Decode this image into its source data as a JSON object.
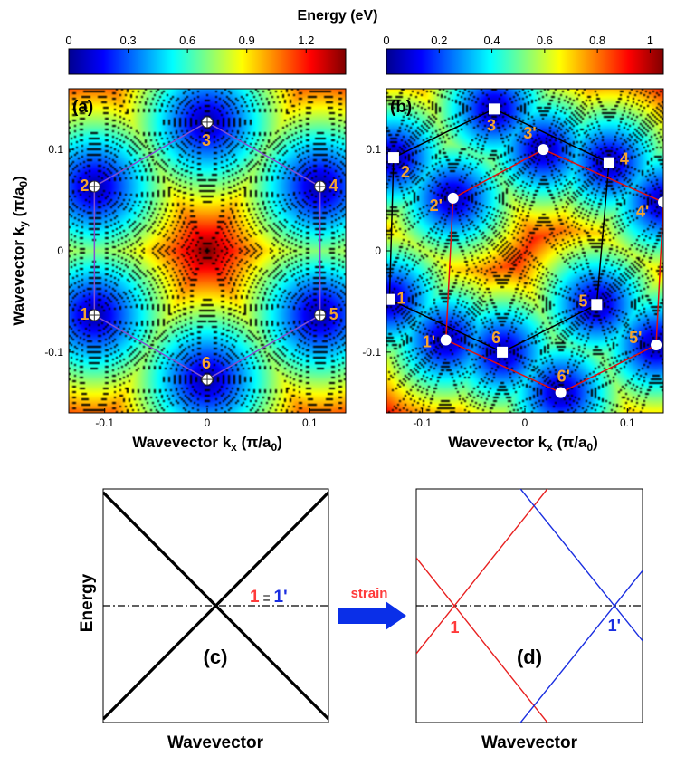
{
  "colorbar_title": "Energy (eV)",
  "colors": {
    "orange_label": "#f4a430",
    "hex_purple": "#8050d0",
    "hex_black": "#000000",
    "hex_red": "#e01010",
    "line_red": "#e82020",
    "line_blue": "#1a2ee0",
    "arrow_blue": "#0a2fe8",
    "strain_red": "#ff3a3a"
  },
  "colormap": [
    "#00008f",
    "#0000ff",
    "#0080ff",
    "#00ffff",
    "#80ff80",
    "#ffff00",
    "#ff8000",
    "#ff0000",
    "#800000"
  ],
  "arrow": {
    "label": "strain"
  },
  "chart_data": [
    {
      "id": "a",
      "type": "heatmap",
      "panel_label": "(a)",
      "xlabel": "Wavevector k",
      "xlabel_sub": "x",
      "xlabel_unit": " (π/a",
      "xlabel_unit_sub": "0",
      "xlabel_unit_end": ")",
      "ylabel": "Wavevector k",
      "ylabel_sub": "y",
      "ylabel_unit": " (π/a",
      "ylabel_unit_sub": "0",
      "ylabel_unit_end": ")",
      "xlim": [
        -0.135,
        0.135
      ],
      "ylim": [
        -0.16,
        0.16
      ],
      "xticks": [
        -0.1,
        0,
        0.1
      ],
      "xtick_labels": [
        "-0.1",
        "0",
        "0.1"
      ],
      "yticks": [
        -0.1,
        0,
        0.1
      ],
      "ytick_labels": [
        "-0.1",
        "0",
        "0.1"
      ],
      "colorbar": {
        "range": [
          0,
          1.4
        ],
        "ticks": [
          0,
          0.3,
          0.6,
          0.9,
          1.2
        ],
        "tick_labels": [
          "0",
          "0.3",
          "0.6",
          "0.9",
          "1.2"
        ]
      },
      "points": [
        {
          "label": "1",
          "x": -0.11,
          "y": -0.0635
        },
        {
          "label": "2",
          "x": -0.11,
          "y": 0.0635
        },
        {
          "label": "3",
          "x": 0.0,
          "y": 0.127
        },
        {
          "label": "4",
          "x": 0.11,
          "y": 0.0635
        },
        {
          "label": "5",
          "x": 0.11,
          "y": -0.0635
        },
        {
          "label": "6",
          "x": 0.0,
          "y": -0.127
        }
      ]
    },
    {
      "id": "b",
      "type": "heatmap",
      "panel_label": "(b)",
      "xlabel": "Wavevector k",
      "xlabel_sub": "x",
      "xlabel_unit": " (π/a",
      "xlabel_unit_sub": "0",
      "xlabel_unit_end": ")",
      "xlim": [
        -0.135,
        0.135
      ],
      "ylim": [
        -0.16,
        0.16
      ],
      "xticks": [
        -0.1,
        0,
        0.1
      ],
      "xtick_labels": [
        "-0.1",
        "0",
        "0.1"
      ],
      "yticks": [
        -0.1,
        0,
        0.1
      ],
      "ytick_labels": [
        "-0.1",
        "0",
        "0.1"
      ],
      "colorbar": {
        "range": [
          0,
          1.05
        ],
        "ticks": [
          0,
          0.2,
          0.4,
          0.6,
          0.8,
          1
        ],
        "tick_labels": [
          "0",
          "0.2",
          "0.4",
          "0.6",
          "0.8",
          "1"
        ]
      },
      "points_unstrained": [
        {
          "label": "1",
          "x": -0.132,
          "y": -0.048
        },
        {
          "label": "2",
          "x": -0.128,
          "y": 0.092
        },
        {
          "label": "3",
          "x": -0.03,
          "y": 0.14
        },
        {
          "label": "4",
          "x": 0.082,
          "y": 0.087
        },
        {
          "label": "5",
          "x": 0.07,
          "y": -0.053
        },
        {
          "label": "6",
          "x": -0.022,
          "y": -0.1
        }
      ],
      "points_strained": [
        {
          "label": "1'",
          "x": -0.077,
          "y": -0.088
        },
        {
          "label": "2'",
          "x": -0.07,
          "y": 0.052
        },
        {
          "label": "3'",
          "x": 0.018,
          "y": 0.1
        },
        {
          "label": "4'",
          "x": 0.135,
          "y": 0.048
        },
        {
          "label": "5'",
          "x": 0.128,
          "y": -0.093
        },
        {
          "label": "6'",
          "x": 0.035,
          "y": -0.14
        }
      ]
    },
    {
      "id": "c",
      "type": "line",
      "panel_label": "(c)",
      "xlabel": "Wavevector",
      "ylabel": "Energy",
      "xlim": [
        0,
        1
      ],
      "ylim": [
        -1,
        1
      ],
      "annotation": {
        "left": "1",
        "eq": " ≡ ",
        "right": "1'"
      },
      "series": [
        {
          "x": [
            0,
            1
          ],
          "y": [
            0.97,
            -0.97
          ],
          "color": "#000000"
        },
        {
          "x": [
            0,
            1
          ],
          "y": [
            -0.97,
            0.97
          ],
          "color": "#000000"
        }
      ],
      "dirac_x": 0.5
    },
    {
      "id": "d",
      "type": "line",
      "panel_label": "(d)",
      "xlabel": "Wavevector",
      "xlim": [
        0,
        1
      ],
      "ylim": [
        -1,
        1
      ],
      "labels": {
        "left": "1",
        "right": "1'"
      },
      "series": [
        {
          "x": [
            0,
            0.6
          ],
          "y": [
            -0.41,
            1.05
          ],
          "color": "#e82020"
        },
        {
          "x": [
            0,
            0.6
          ],
          "y": [
            0.41,
            -1.05
          ],
          "color": "#e82020"
        },
        {
          "x": [
            0.44,
            1.0
          ],
          "y": [
            1.05,
            -0.3
          ],
          "color": "#1a2ee0"
        },
        {
          "x": [
            0.44,
            1.0
          ],
          "y": [
            -1.05,
            0.3
          ],
          "color": "#1a2ee0"
        }
      ],
      "dirac_left_x": 0.17,
      "dirac_right_x": 0.875
    }
  ]
}
